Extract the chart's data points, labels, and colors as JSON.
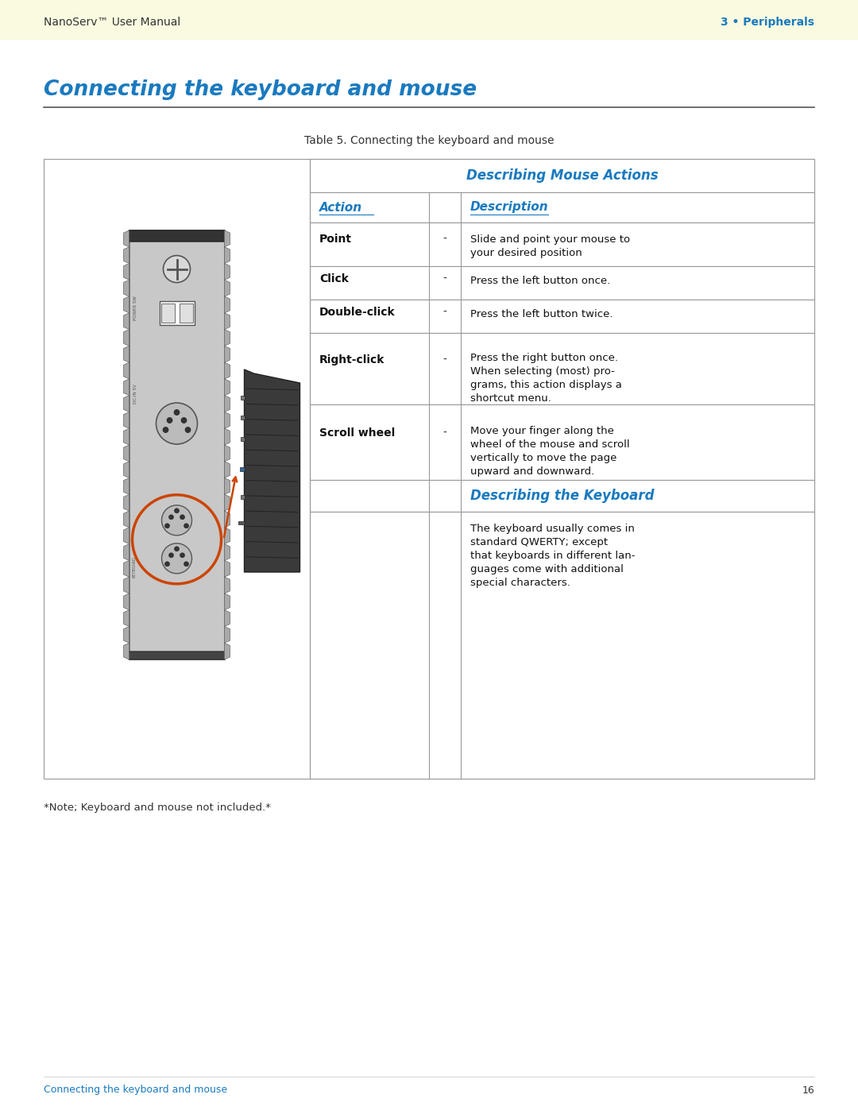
{
  "page_bg": "#ffffff",
  "header_bg": "#fafae0",
  "header_text_left": "NanoServ™ User Manual",
  "header_text_right": "3 • Peripherals",
  "header_text_color_left": "#333333",
  "header_text_color_right": "#1a7abf",
  "section_title": "Connecting the keyboard and mouse",
  "section_title_color": "#1a7abf",
  "table_caption": "Table 5. Connecting the keyboard and mouse",
  "table_caption_color": "#333333",
  "table_header1": "Describing Mouse Actions",
  "table_header2": "Describing the Keyboard",
  "table_col1_header": "Action",
  "table_col2_header": "Description",
  "table_header_color": "#1a7abf",
  "table_border_color": "#999999",
  "rows": [
    {
      "action": "Point",
      "dash": "-",
      "description": "Slide and point your mouse to\nyour desired position"
    },
    {
      "action": "Click",
      "dash": "-",
      "description": "Press the left button once."
    },
    {
      "action": "Double-click",
      "dash": "-",
      "description": "Press the left button twice."
    },
    {
      "action": "Right-click",
      "dash": "-",
      "description": "Press the right button once.\nWhen selecting (most) pro-\ngrams, this action displays a\nshortcut menu."
    },
    {
      "action": "Scroll wheel",
      "dash": "-",
      "description": "Move your finger along the\nwheel of the mouse and scroll\nvertically to move the page\nupward and downward."
    }
  ],
  "keyboard_description": "The keyboard usually comes in\nstandard QWERTY; except\nthat keyboards in different lan-\nguages come with additional\nspecial characters.",
  "footer_note": "*Note; Keyboard and mouse not included.*",
  "footer_page": "16",
  "footer_left_text": "Connecting the keyboard and mouse",
  "footer_color": "#1a7abf"
}
